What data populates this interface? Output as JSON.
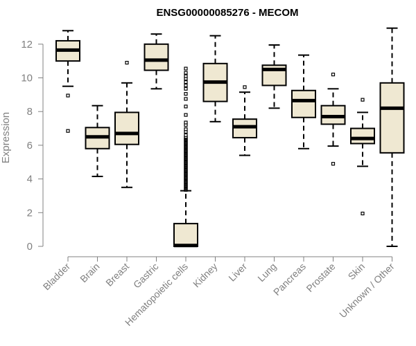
{
  "colors": {
    "box_fill": "#efe8d2",
    "stroke": "#000000",
    "axis": "#808080",
    "text": "#808080",
    "title": "#000000"
  },
  "chart_data": {
    "type": "boxplot",
    "title": "ENSG00000085276 - MECOM",
    "xlabel": "",
    "ylabel": "Expression",
    "ylim": [
      0,
      13
    ],
    "yticks": [
      0,
      2,
      4,
      6,
      8,
      10,
      12
    ],
    "categories": [
      "Bladder",
      "Brain",
      "Breast",
      "Gastric",
      "Hematopoietic cells",
      "Kidney",
      "Liver",
      "Lung",
      "Pancreas",
      "Prostate",
      "Skin",
      "Unknown / Other"
    ],
    "boxes": [
      {
        "name": "Bladder",
        "whisker_low": 9.5,
        "q1": 11.0,
        "median": 11.65,
        "q3": 12.2,
        "whisker_high": 12.8,
        "outliers": [
          8.95,
          6.85
        ]
      },
      {
        "name": "Brain",
        "whisker_low": 4.15,
        "q1": 5.8,
        "median": 6.5,
        "q3": 7.05,
        "whisker_high": 8.35,
        "outliers": []
      },
      {
        "name": "Breast",
        "whisker_low": 3.5,
        "q1": 6.05,
        "median": 6.7,
        "q3": 7.95,
        "whisker_high": 9.7,
        "outliers": [
          10.9
        ]
      },
      {
        "name": "Gastric",
        "whisker_low": 9.35,
        "q1": 10.45,
        "median": 11.05,
        "q3": 12.0,
        "whisker_high": 12.6,
        "outliers": []
      },
      {
        "name": "Hematopoietic cells",
        "whisker_low": 0.0,
        "q1": 0.0,
        "median": 0.05,
        "q3": 1.35,
        "whisker_high": 3.3,
        "outliers": [
          3.35,
          3.4,
          3.45,
          3.5,
          3.55,
          3.6,
          3.65,
          3.7,
          3.75,
          3.8,
          3.85,
          3.9,
          3.95,
          4.0,
          4.05,
          4.1,
          4.15,
          4.2,
          4.25,
          4.3,
          4.35,
          4.4,
          4.45,
          4.5,
          4.55,
          4.6,
          4.65,
          4.7,
          4.75,
          4.8,
          4.85,
          4.9,
          4.95,
          5.0,
          5.05,
          5.1,
          5.15,
          5.2,
          5.25,
          5.3,
          5.35,
          5.4,
          5.45,
          5.5,
          5.55,
          5.6,
          5.65,
          5.7,
          5.75,
          5.8,
          5.85,
          5.9,
          5.95,
          6.0,
          6.05,
          6.1,
          6.15,
          6.2,
          6.25,
          6.3,
          6.35,
          6.4,
          6.45,
          6.5,
          6.6,
          6.8,
          6.95,
          7.2,
          7.35,
          7.8,
          8.3,
          8.75,
          9.05,
          9.35,
          9.55,
          9.75,
          9.95,
          10.1,
          10.3,
          10.55
        ]
      },
      {
        "name": "Kidney",
        "whisker_low": 7.4,
        "q1": 8.6,
        "median": 9.75,
        "q3": 10.85,
        "whisker_high": 12.5,
        "outliers": []
      },
      {
        "name": "Liver",
        "whisker_low": 5.4,
        "q1": 6.45,
        "median": 7.1,
        "q3": 7.55,
        "whisker_high": 9.15,
        "outliers": [
          9.45
        ]
      },
      {
        "name": "Lung",
        "whisker_low": 8.2,
        "q1": 9.55,
        "median": 10.5,
        "q3": 10.75,
        "whisker_high": 11.95,
        "outliers": []
      },
      {
        "name": "Pancreas",
        "whisker_low": 5.8,
        "q1": 7.65,
        "median": 8.65,
        "q3": 9.25,
        "whisker_high": 11.35,
        "outliers": []
      },
      {
        "name": "Prostate",
        "whisker_low": 5.95,
        "q1": 7.25,
        "median": 7.7,
        "q3": 8.35,
        "whisker_high": 9.35,
        "outliers": [
          10.2,
          4.9
        ]
      },
      {
        "name": "Skin",
        "whisker_low": 4.75,
        "q1": 6.1,
        "median": 6.4,
        "q3": 7.0,
        "whisker_high": 7.95,
        "outliers": [
          8.7,
          1.95
        ]
      },
      {
        "name": "Unknown / Other",
        "whisker_low": 0.0,
        "q1": 5.55,
        "median": 8.2,
        "q3": 9.7,
        "whisker_high": 12.95,
        "outliers": []
      }
    ]
  }
}
